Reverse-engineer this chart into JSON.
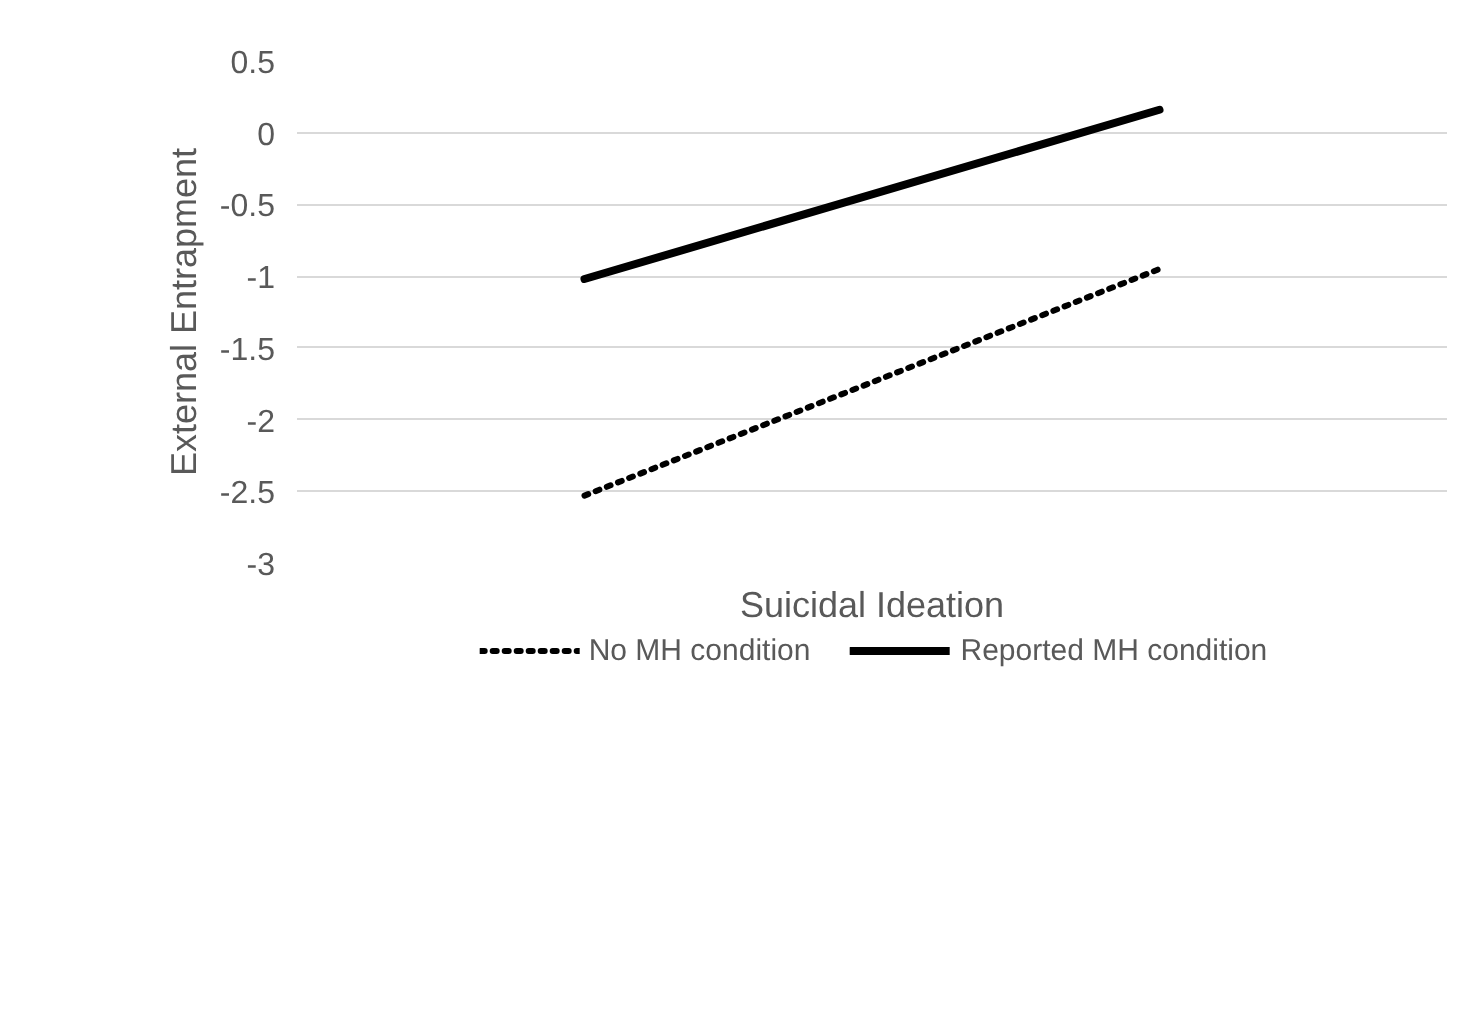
{
  "chart_data": {
    "type": "line",
    "xlabel": "Suicidal Ideation",
    "ylabel": "External Entrapment",
    "categories": [
      null,
      null
    ],
    "series": [
      {
        "name": "No MH condition",
        "color": "#000000",
        "values": [
          -2.53,
          -0.95
        ],
        "line_style": "dotted"
      },
      {
        "name": "Reported MH condition",
        "color": "#000000",
        "values": [
          -1.02,
          0.16
        ],
        "line_style": "solid"
      }
    ],
    "ylim": [
      -3,
      0.5
    ],
    "yticks": [
      -3,
      -2.5,
      -2,
      -1.5,
      -1,
      -0.5,
      0,
      0.5
    ],
    "grid": "y",
    "legend": "bottom",
    "marker": "none"
  }
}
